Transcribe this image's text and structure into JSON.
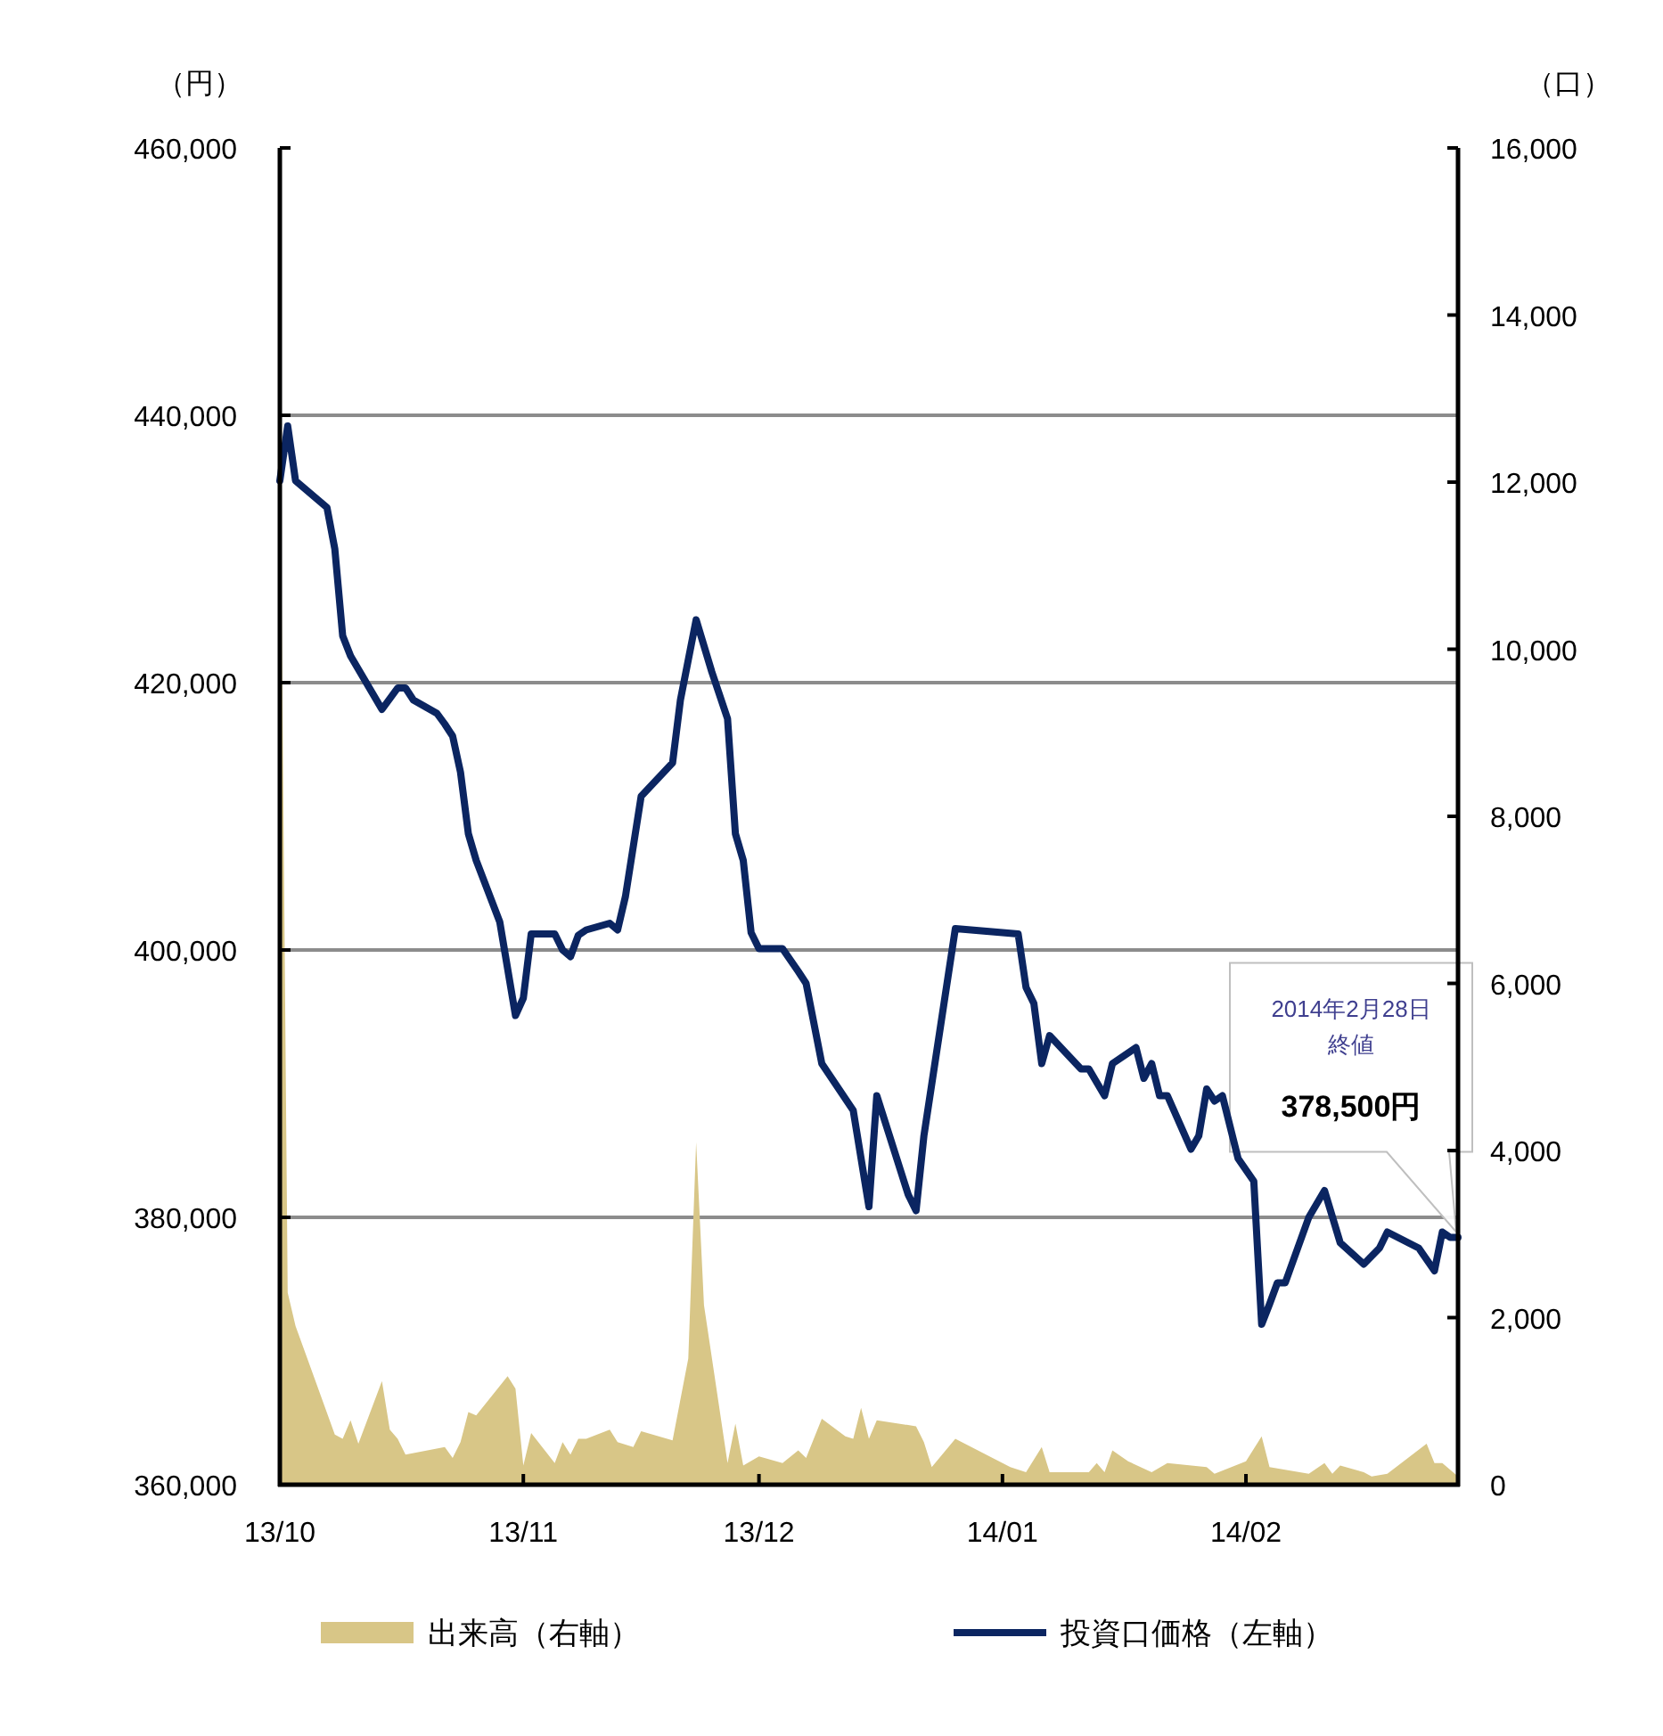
{
  "chart_data": {
    "type": "line",
    "ylabel": "（円）",
    "y2label": "（口）",
    "xlim": [
      "2013-10-01",
      "2014-02-28"
    ],
    "xticks": [
      {
        "value": "2013-10-01",
        "label": "13/10"
      },
      {
        "value": "2013-11-01",
        "label": "13/11"
      },
      {
        "value": "2013-12-01",
        "label": "13/12"
      },
      {
        "value": "2014-01-01",
        "label": "14/01"
      },
      {
        "value": "2014-02-01",
        "label": "14/02"
      }
    ],
    "ylim": [
      360000,
      460000
    ],
    "yticks": [
      {
        "value": 360000,
        "label": "360,000"
      },
      {
        "value": 380000,
        "label": "380,000"
      },
      {
        "value": 400000,
        "label": "400,000"
      },
      {
        "value": 420000,
        "label": "420,000"
      },
      {
        "value": 440000,
        "label": "440,000"
      },
      {
        "value": 460000,
        "label": "460,000"
      }
    ],
    "y2lim": [
      0,
      16000
    ],
    "y2ticks": [
      0,
      {
        "value": 2000,
        "label": "2,000"
      },
      {
        "value": 4000,
        "label": "4,000"
      },
      {
        "value": 6000,
        "label": "6,000"
      },
      {
        "value": 8000,
        "label": "8,000"
      },
      {
        "value": 10000,
        "label": "10,000"
      },
      {
        "value": 12000,
        "label": "12,000"
      },
      {
        "value": 14000,
        "label": "14,000"
      },
      {
        "value": 16000,
        "label": "16,000"
      }
    ],
    "grid": "y",
    "legend": "bottom",
    "series": [
      {
        "name": "出来高（右軸）",
        "type": "area",
        "axis": "y2",
        "color": "#d8c687",
        "x": [
          "2013-10-01",
          "2013-10-02",
          "2013-10-03",
          "2013-10-08",
          "2013-10-09",
          "2013-10-10",
          "2013-10-11",
          "2013-10-14",
          "2013-10-15",
          "2013-10-16",
          "2013-10-17",
          "2013-10-22",
          "2013-10-23",
          "2013-10-24",
          "2013-10-25",
          "2013-10-26",
          "2013-10-30",
          "2013-10-31",
          "2013-11-01",
          "2013-11-02",
          "2013-11-05",
          "2013-11-06",
          "2013-11-07",
          "2013-11-08",
          "2013-11-09",
          "2013-11-12",
          "2013-11-13",
          "2013-11-15",
          "2013-11-16",
          "2013-11-20",
          "2013-11-22",
          "2013-11-23",
          "2013-11-24",
          "2013-11-27",
          "2013-11-28",
          "2013-11-29",
          "2013-12-01",
          "2013-12-04",
          "2013-12-06",
          "2013-12-07",
          "2013-12-09",
          "2013-12-12",
          "2013-12-13",
          "2013-12-14",
          "2013-12-15",
          "2013-12-16",
          "2013-12-21",
          "2013-12-22",
          "2013-12-23",
          "2013-12-26",
          "2014-01-02",
          "2014-01-04",
          "2014-01-06",
          "2014-01-07",
          "2014-01-12",
          "2014-01-13",
          "2014-01-14",
          "2014-01-15",
          "2014-01-17",
          "2014-01-20",
          "2014-01-22",
          "2014-01-27",
          "2014-01-28",
          "2014-02-01",
          "2014-02-03",
          "2014-02-04",
          "2014-02-09",
          "2014-02-11",
          "2014-02-12",
          "2014-02-13",
          "2014-02-16",
          "2014-02-17",
          "2014-02-19",
          "2014-02-24",
          "2014-02-25",
          "2014-02-26",
          "2014-02-28"
        ],
        "values": [
          13000,
          2300,
          1900,
          600,
          550,
          770,
          490,
          1240,
          660,
          550,
          360,
          450,
          320,
          510,
          870,
          830,
          1300,
          1150,
          230,
          620,
          260,
          510,
          360,
          550,
          550,
          660,
          510,
          450,
          640,
          530,
          1510,
          4100,
          2150,
          260,
          730,
          230,
          340,
          260,
          410,
          320,
          790,
          580,
          550,
          920,
          550,
          770,
          700,
          510,
          210,
          550,
          210,
          150,
          450,
          150,
          150,
          260,
          150,
          410,
          280,
          150,
          260,
          210,
          130,
          280,
          580,
          210,
          130,
          260,
          130,
          230,
          150,
          100,
          130,
          490,
          260,
          260,
          100
        ]
      },
      {
        "name": "投資口価格（左軸）",
        "axis": "y",
        "color": "#0b2561",
        "x": [
          "2013-10-01",
          "2013-10-02",
          "2013-10-03",
          "2013-10-07",
          "2013-10-08",
          "2013-10-09",
          "2013-10-10",
          "2013-10-14",
          "2013-10-15",
          "2013-10-16",
          "2013-10-17",
          "2013-10-18",
          "2013-10-21",
          "2013-10-22",
          "2013-10-23",
          "2013-10-24",
          "2013-10-25",
          "2013-10-26",
          "2013-10-29",
          "2013-10-31",
          "2013-11-01",
          "2013-11-02",
          "2013-11-05",
          "2013-11-06",
          "2013-11-07",
          "2013-11-08",
          "2013-11-09",
          "2013-11-12",
          "2013-11-13",
          "2013-11-14",
          "2013-11-16",
          "2013-11-20",
          "2013-11-21",
          "2013-11-23",
          "2013-11-25",
          "2013-11-27",
          "2013-11-28",
          "2013-11-29",
          "2013-11-30",
          "2013-12-01",
          "2013-12-04",
          "2013-12-06",
          "2013-12-07",
          "2013-12-09",
          "2013-12-13",
          "2013-12-15",
          "2013-12-16",
          "2013-12-20",
          "2013-12-21",
          "2013-12-22",
          "2013-12-26",
          "2014-01-03",
          "2014-01-04",
          "2014-01-05",
          "2014-01-06",
          "2014-01-07",
          "2014-01-11",
          "2014-01-12",
          "2014-01-14",
          "2014-01-15",
          "2014-01-18",
          "2014-01-19",
          "2014-01-20",
          "2014-01-21",
          "2014-01-22",
          "2014-01-25",
          "2014-01-26",
          "2014-01-27",
          "2014-01-28",
          "2014-01-29",
          "2014-01-31",
          "2014-02-02",
          "2014-02-03",
          "2014-02-04",
          "2014-02-05",
          "2014-02-06",
          "2014-02-09",
          "2014-02-11",
          "2014-02-13",
          "2014-02-16",
          "2014-02-18",
          "2014-02-19",
          "2014-02-23",
          "2014-02-25",
          "2014-02-26",
          "2014-02-27",
          "2014-02-28"
        ],
        "values": [
          435100,
          439200,
          435100,
          433100,
          430000,
          423500,
          422000,
          418000,
          418800,
          419600,
          419600,
          418700,
          417700,
          416900,
          416000,
          413300,
          408700,
          406700,
          402100,
          395100,
          396400,
          401200,
          401200,
          400000,
          399500,
          401100,
          401500,
          402000,
          401500,
          404000,
          411500,
          414000,
          418700,
          424700,
          420800,
          417300,
          408700,
          406700,
          401300,
          400100,
          400100,
          398400,
          397500,
          391500,
          388000,
          380800,
          389100,
          381700,
          380500,
          386100,
          401600,
          401200,
          397200,
          396000,
          391500,
          393600,
          391100,
          391100,
          389100,
          391500,
          392700,
          390400,
          391500,
          389100,
          389100,
          385100,
          386100,
          389600,
          388700,
          389100,
          384400,
          382700,
          372000,
          373500,
          375100,
          375100,
          380000,
          382000,
          378100,
          376500,
          377700,
          378900,
          377700,
          376000,
          378900,
          378500,
          378500
        ]
      }
    ],
    "annotations": [
      "2014年2月28日",
      "終値",
      "378,500円"
    ]
  }
}
